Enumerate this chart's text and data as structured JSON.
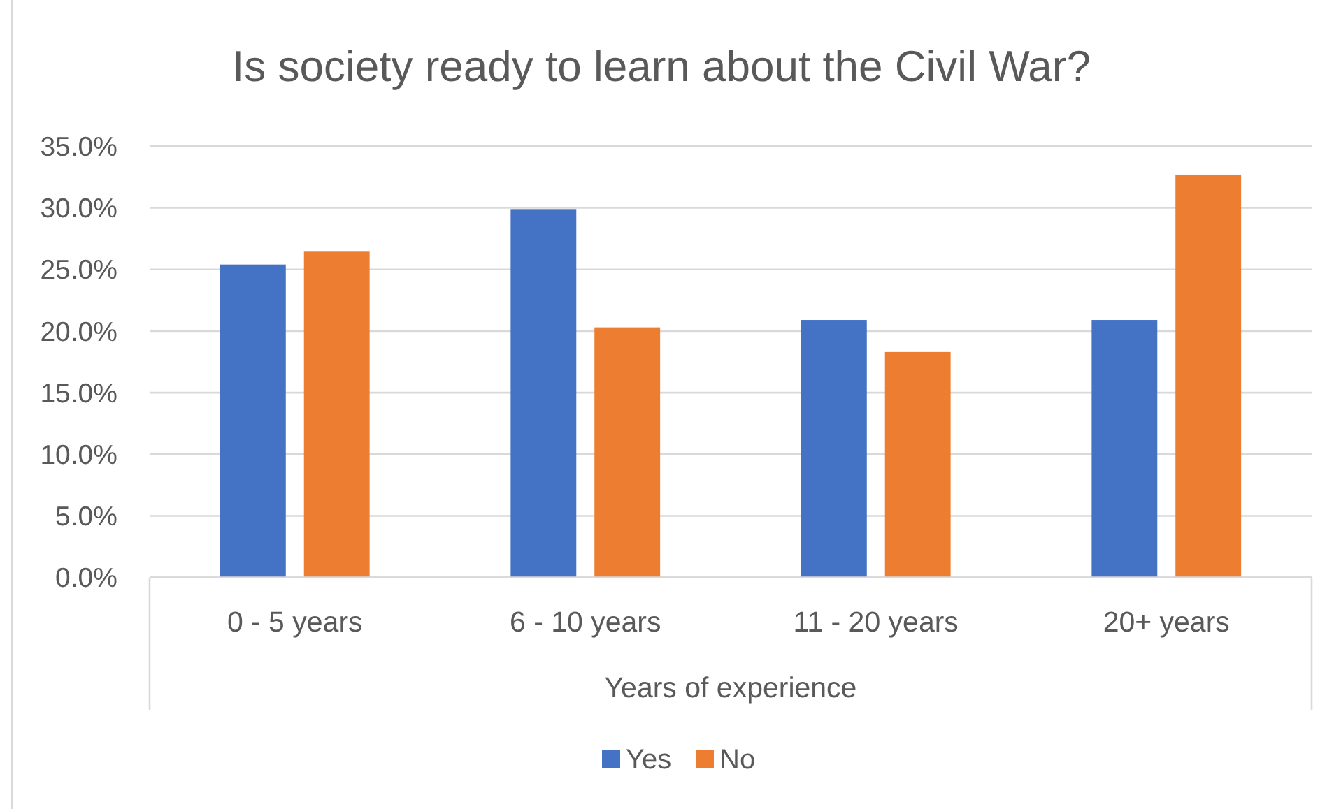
{
  "chart_data": {
    "type": "bar",
    "title": "Is society ready to learn about the Civil War?",
    "xlabel": "Years of experience",
    "categories": [
      "0 - 5 years",
      "6 - 10 years",
      "11 - 20 years",
      "20+ years"
    ],
    "series": [
      {
        "name": "Yes",
        "color": "#4472c4",
        "values": [
          25.4,
          29.9,
          20.9,
          20.9
        ]
      },
      {
        "name": "No",
        "color": "#ed7d31",
        "values": [
          26.5,
          20.3,
          18.3,
          32.7
        ]
      }
    ],
    "ylim": [
      0,
      35
    ],
    "yticks": [
      {
        "value": 0,
        "label": "0.0%"
      },
      {
        "value": 5,
        "label": "5.0%"
      },
      {
        "value": 10,
        "label": "10.0%"
      },
      {
        "value": 15,
        "label": "15.0%"
      },
      {
        "value": 20,
        "label": "20.0%"
      },
      {
        "value": 25,
        "label": "25.0%"
      },
      {
        "value": 30,
        "label": "30.0%"
      },
      {
        "value": 35,
        "label": "35.0%"
      }
    ],
    "grid": "y",
    "legend": "bottom"
  }
}
